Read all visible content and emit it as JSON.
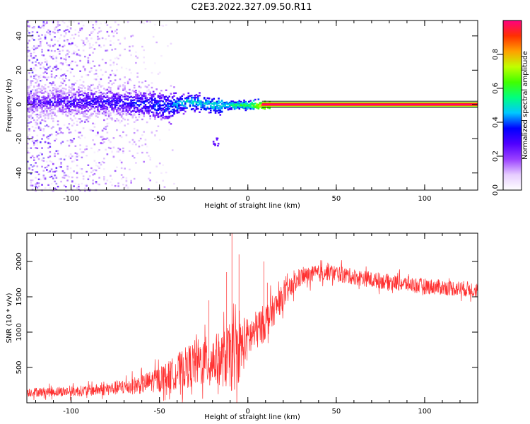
{
  "title": "C2E3.2022.327.09.50.R11",
  "chart_data": [
    {
      "type": "heatmap",
      "xlabel": "Height of straight line (km)",
      "ylabel": "Frequency (Hz)",
      "xlim": [
        -125,
        130
      ],
      "ylim": [
        -50,
        49
      ],
      "x_ticks": [
        -100,
        -50,
        0,
        50,
        100
      ],
      "y_ticks": [
        -40,
        -20,
        0,
        20,
        40
      ],
      "colorbar": {
        "label": "Normalized spectral amplitude",
        "range": [
          0.0,
          1.0
        ],
        "ticks": [
          0.0,
          0.2,
          0.4,
          0.6,
          0.8
        ],
        "tick_labels": [
          "0.0",
          "0.2",
          "0.4",
          "0.6",
          "0.8"
        ],
        "colormap": [
          "#ffffff",
          "#e6ccff",
          "#9a40ff",
          "#5000ff",
          "#0000ff",
          "#00c8ff",
          "#00ff80",
          "#40ff00",
          "#c0ff00",
          "#ffa000",
          "#ff3000",
          "#ff0080"
        ]
      },
      "ridge": [
        {
          "x": -120,
          "f": 2,
          "amp": 0.25
        },
        {
          "x": -100,
          "f": 2,
          "amp": 0.3
        },
        {
          "x": -80,
          "f": 2,
          "amp": 0.32
        },
        {
          "x": -60,
          "f": 1,
          "amp": 0.35
        },
        {
          "x": -45,
          "f": -1,
          "amp": 0.4
        },
        {
          "x": -35,
          "f": 2,
          "amp": 0.5
        },
        {
          "x": -20,
          "f": 0,
          "amp": 0.5
        },
        {
          "x": -10,
          "f": 0,
          "amp": 0.55
        },
        {
          "x": 0,
          "f": 0,
          "amp": 0.6
        },
        {
          "x": 8,
          "f": 0,
          "amp": 0.8
        },
        {
          "x": 130,
          "f": 0,
          "amp": 0.92
        }
      ]
    },
    {
      "type": "line",
      "xlabel": "Height of straight line (km)",
      "ylabel": "SNR (10 * v/v)",
      "xlim": [
        -125,
        130
      ],
      "ylim": [
        0,
        2400
      ],
      "x_ticks": [
        -100,
        -50,
        0,
        50,
        100
      ],
      "y_ticks": [
        500,
        1000,
        1500,
        2000
      ],
      "color": "#ff3030",
      "envelope": [
        {
          "x": -125,
          "mean": 150,
          "amp": 80
        },
        {
          "x": -100,
          "mean": 160,
          "amp": 90
        },
        {
          "x": -80,
          "mean": 190,
          "amp": 110
        },
        {
          "x": -60,
          "mean": 260,
          "amp": 170
        },
        {
          "x": -45,
          "mean": 380,
          "amp": 260
        },
        {
          "x": -30,
          "mean": 560,
          "amp": 420
        },
        {
          "x": -15,
          "mean": 620,
          "amp": 480
        },
        {
          "x": -8,
          "mean": 650,
          "amp": 650
        },
        {
          "x": 0,
          "mean": 900,
          "amp": 380
        },
        {
          "x": 10,
          "mean": 1150,
          "amp": 330
        },
        {
          "x": 20,
          "mean": 1500,
          "amp": 220
        },
        {
          "x": 30,
          "mean": 1780,
          "amp": 160
        },
        {
          "x": 45,
          "mean": 1850,
          "amp": 150
        },
        {
          "x": 70,
          "mean": 1740,
          "amp": 140
        },
        {
          "x": 100,
          "mean": 1650,
          "amp": 140
        },
        {
          "x": 130,
          "mean": 1600,
          "amp": 140
        }
      ],
      "spikes": [
        {
          "x": -9,
          "y": 2400
        },
        {
          "x": -5,
          "y": 2100
        },
        {
          "x": -12,
          "y": 1850
        },
        {
          "x": 9,
          "y": 2000
        },
        {
          "x": 11,
          "y": 1700
        },
        {
          "x": -22,
          "y": 1450
        }
      ]
    }
  ]
}
